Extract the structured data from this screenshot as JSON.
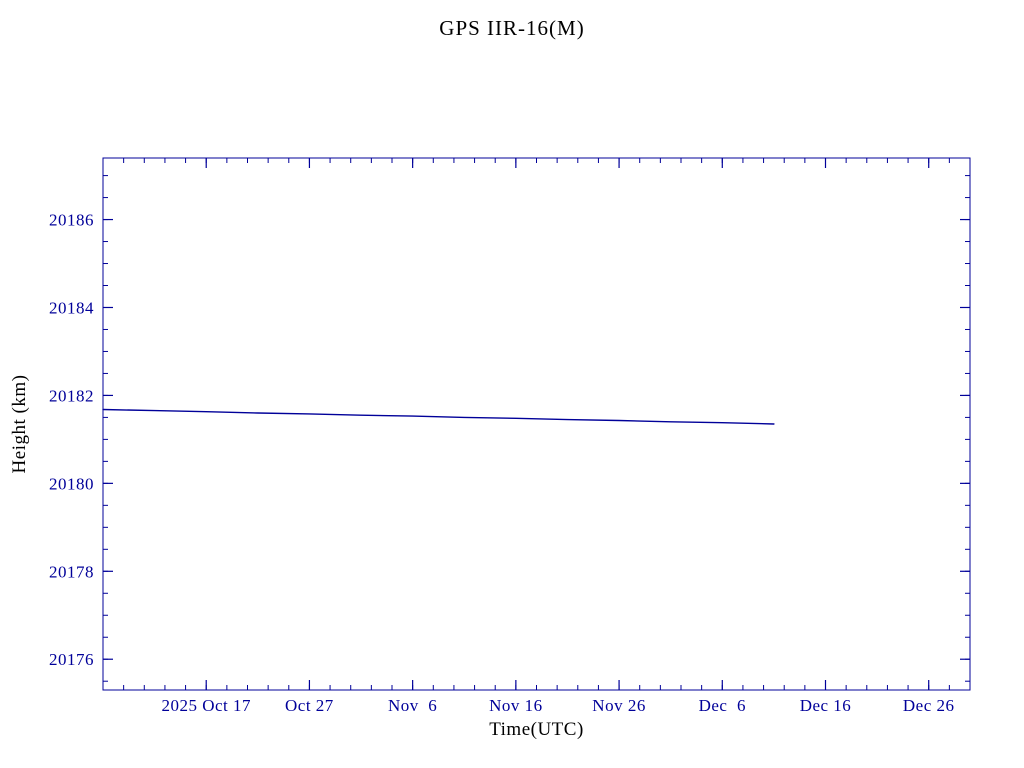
{
  "chart_data": {
    "type": "line",
    "title": "GPS IIR-16(M)",
    "xlabel": "Time(UTC)",
    "ylabel": "Height (km)",
    "color": "#000099",
    "xlim": [
      0,
      84
    ],
    "ylim": [
      20175.3,
      20187.4
    ],
    "x_ticks": [
      {
        "day": 10,
        "label": "2025 Oct 17"
      },
      {
        "day": 20,
        "label": "Oct 27"
      },
      {
        "day": 30,
        "label": "Nov  6"
      },
      {
        "day": 40,
        "label": "Nov 16"
      },
      {
        "day": 50,
        "label": "Nov 26"
      },
      {
        "day": 60,
        "label": "Dec  6"
      },
      {
        "day": 70,
        "label": "Dec 16"
      },
      {
        "day": 80,
        "label": "Dec 26"
      }
    ],
    "x_minor_step": 2,
    "y_ticks": [
      20176,
      20178,
      20180,
      20182,
      20184,
      20186
    ],
    "y_minor_step": 0.5,
    "grid": false,
    "legend": "none",
    "series": [
      {
        "name": "height",
        "x": [
          0,
          5,
          10,
          15,
          20,
          25,
          30,
          35,
          40,
          45,
          50,
          55,
          60,
          65
        ],
        "y": [
          20181.68,
          20181.655,
          20181.63,
          20181.6,
          20181.58,
          20181.55,
          20181.53,
          20181.5,
          20181.48,
          20181.45,
          20181.43,
          20181.4,
          20181.38,
          20181.35
        ]
      }
    ]
  }
}
